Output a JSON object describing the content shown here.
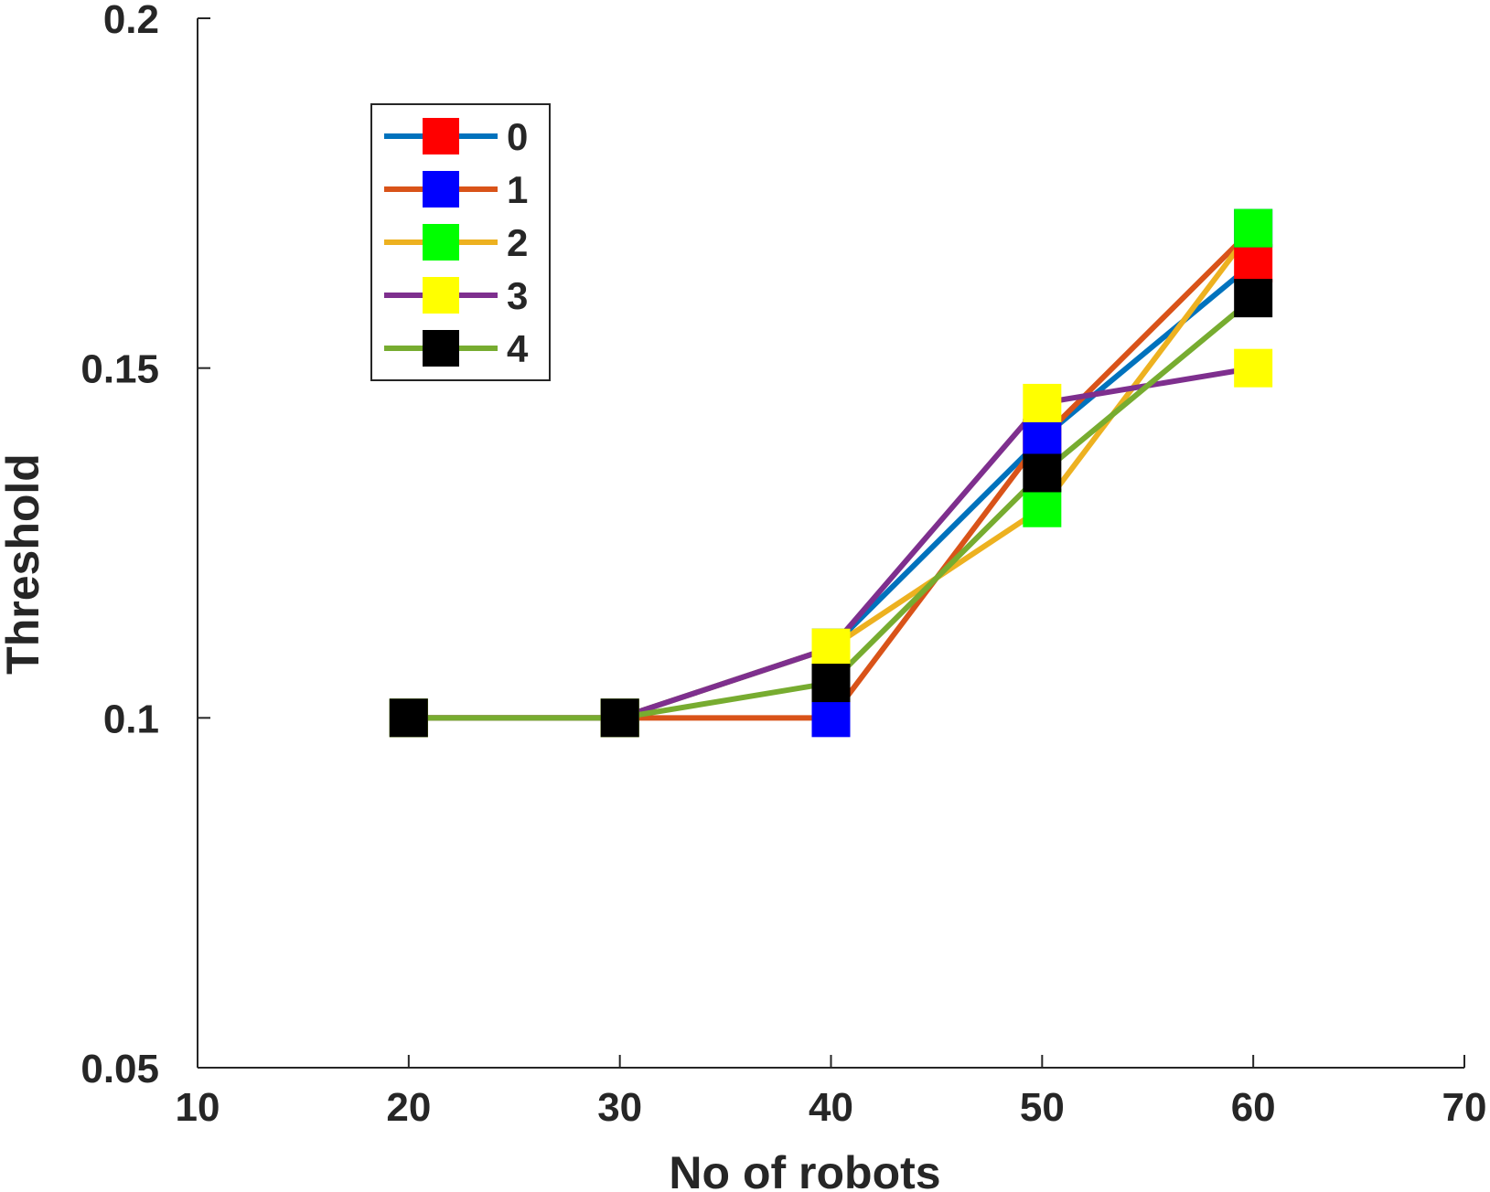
{
  "chart_data": {
    "type": "line",
    "title": "",
    "xlabel": "No of robots",
    "ylabel": "Threshold",
    "xlim": [
      10,
      70
    ],
    "ylim": [
      0.05,
      0.2
    ],
    "xticks": [
      10,
      20,
      30,
      40,
      50,
      60,
      70
    ],
    "xtick_labels": [
      "10",
      "20",
      "30",
      "40",
      "50",
      "60",
      "70"
    ],
    "yticks": [
      0.05,
      0.1,
      0.15,
      0.2
    ],
    "ytick_labels": [
      "0.05",
      "0.1",
      "0.15",
      "0.2"
    ],
    "grid": false,
    "legend_position": "top-left",
    "x": [
      20,
      30,
      40,
      50,
      60
    ],
    "series": [
      {
        "name": "0",
        "line_color": "#0072BD",
        "marker_color": "#FF0000",
        "values": [
          0.1,
          0.1,
          0.11,
          0.14,
          0.165
        ]
      },
      {
        "name": "1",
        "line_color": "#D95319",
        "marker_color": "#0000FF",
        "values": [
          0.1,
          0.1,
          0.1,
          0.14,
          0.17
        ]
      },
      {
        "name": "2",
        "line_color": "#EDB120",
        "marker_color": "#00FF00",
        "values": [
          0.1,
          0.1,
          0.11,
          0.13,
          0.17
        ]
      },
      {
        "name": "3",
        "line_color": "#7E2F8E",
        "marker_color": "#FFFF00",
        "values": [
          0.1,
          0.1,
          0.11,
          0.145,
          0.15
        ]
      },
      {
        "name": "4",
        "line_color": "#77AC30",
        "marker_color": "#000000",
        "values": [
          0.1,
          0.1,
          0.105,
          0.135,
          0.16
        ]
      }
    ]
  }
}
